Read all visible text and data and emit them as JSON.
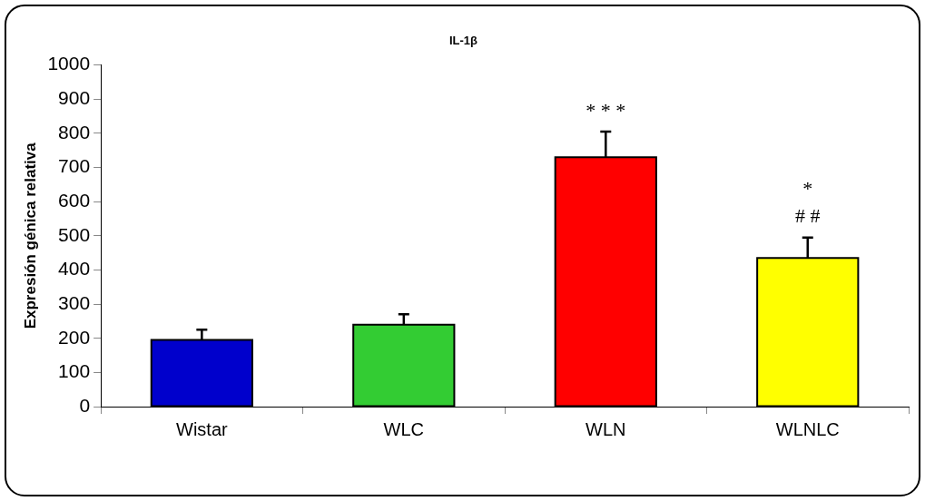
{
  "chart_data": {
    "type": "bar",
    "title": "IL-1β",
    "ylabel": "Expresión génica relativa",
    "categories": [
      "Wistar",
      "WLC",
      "WLN",
      "WLNLC"
    ],
    "values": [
      195,
      240,
      730,
      435
    ],
    "colors": [
      "#0000cc",
      "#33cc33",
      "#ff0000",
      "#ffff00"
    ],
    "errors": [
      [
        195,
        225
      ],
      [
        240,
        270
      ],
      [
        730,
        805
      ],
      [
        435,
        495
      ]
    ],
    "ylim": [
      0,
      1000
    ],
    "yticks": [
      0,
      100,
      200,
      300,
      400,
      500,
      600,
      700,
      800,
      900,
      {
        "value": 1000,
        "label": "1000"
      }
    ],
    "grid": false,
    "legend": false,
    "annotations": [
      "* * *",
      "*",
      "# #"
    ]
  }
}
